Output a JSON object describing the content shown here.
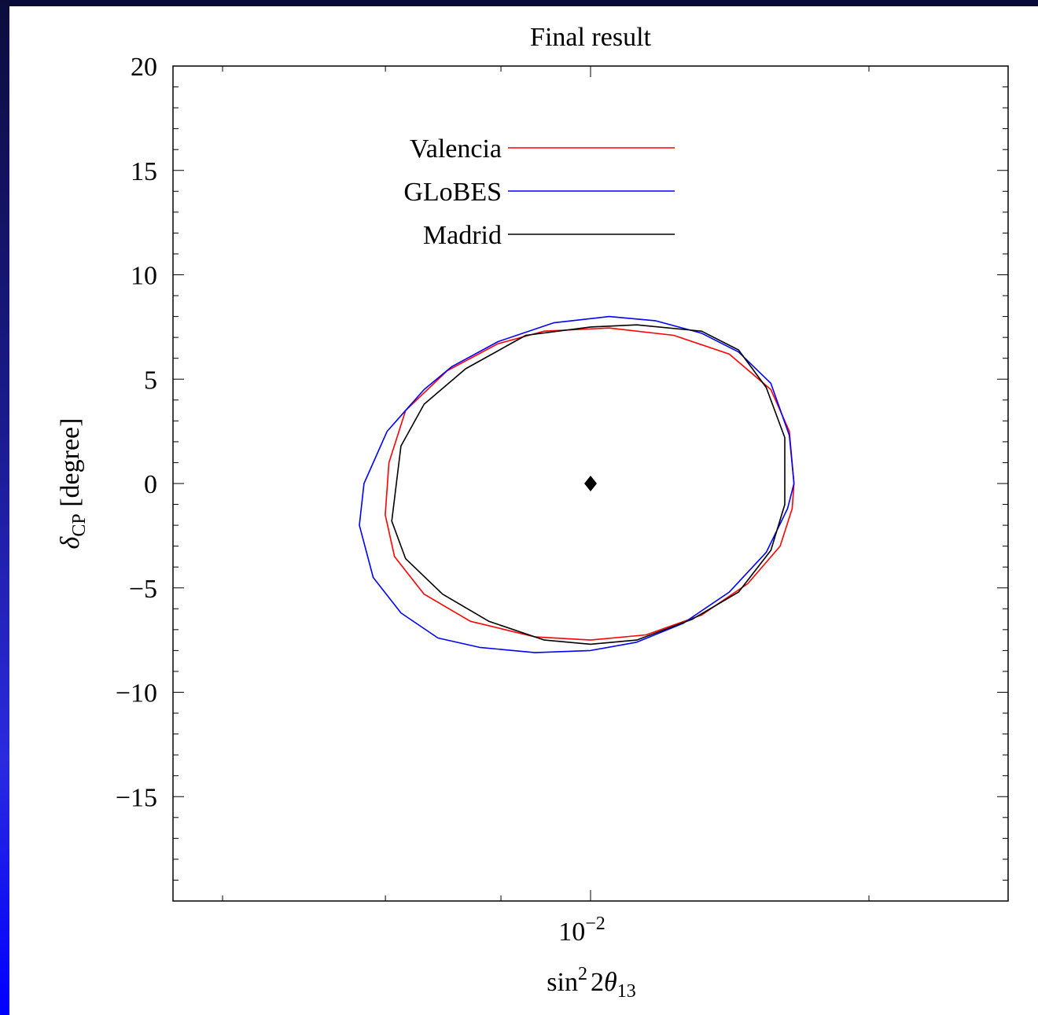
{
  "chart_data": {
    "type": "line",
    "title": "Final result",
    "xlabel": {
      "prefix": "sin",
      "sup": "2",
      "middle": "2",
      "theta": "θ",
      "sub": "13"
    },
    "ylabel": {
      "delta": "δ",
      "sub": "CP",
      "suffix": " [degree]"
    },
    "x_tick_label": {
      "base": "10",
      "exp": "−2"
    },
    "x_center": 0.01,
    "x_scale": "log",
    "ylim": [
      -20,
      20
    ],
    "y_ticks": [
      {
        "value": 20,
        "label": "20"
      },
      {
        "value": 15,
        "label": "15"
      },
      {
        "value": 10,
        "label": "10"
      },
      {
        "value": 5,
        "label": "5"
      },
      {
        "value": 0,
        "label": "0"
      },
      {
        "value": -5,
        "label": "−5"
      },
      {
        "value": -10,
        "label": "−10"
      },
      {
        "value": -15,
        "label": "−15"
      }
    ],
    "legend_position": "top-left",
    "best_fit_point": {
      "x_rel": 0.0,
      "y": 0
    },
    "series": [
      {
        "name": "Valencia",
        "color": "#ff0000",
        "points": [
          [
            0.22,
            0
          ],
          [
            0.215,
            2.5
          ],
          [
            0.195,
            4.5
          ],
          [
            0.15,
            6.2
          ],
          [
            0.09,
            7.1
          ],
          [
            0.02,
            7.45
          ],
          [
            -0.05,
            7.3
          ],
          [
            -0.1,
            6.7
          ],
          [
            -0.155,
            5.4
          ],
          [
            -0.2,
            3.5
          ],
          [
            -0.218,
            1.0
          ],
          [
            -0.222,
            -1.5
          ],
          [
            -0.212,
            -3.5
          ],
          [
            -0.18,
            -5.3
          ],
          [
            -0.13,
            -6.6
          ],
          [
            -0.06,
            -7.35
          ],
          [
            0.0,
            -7.5
          ],
          [
            0.06,
            -7.25
          ],
          [
            0.12,
            -6.3
          ],
          [
            0.17,
            -4.8
          ],
          [
            0.205,
            -3.0
          ],
          [
            0.218,
            -1.2
          ],
          [
            0.22,
            0
          ]
        ]
      },
      {
        "name": "GLoBES",
        "color": "#0000ff",
        "points": [
          [
            0.22,
            0
          ],
          [
            0.215,
            2.3
          ],
          [
            0.195,
            4.8
          ],
          [
            0.16,
            6.3
          ],
          [
            0.12,
            7.2
          ],
          [
            0.07,
            7.8
          ],
          [
            0.02,
            8.0
          ],
          [
            -0.04,
            7.7
          ],
          [
            -0.1,
            6.8
          ],
          [
            -0.15,
            5.6
          ],
          [
            -0.18,
            4.5
          ],
          [
            -0.22,
            2.5
          ],
          [
            -0.245,
            0
          ],
          [
            -0.25,
            -2.0
          ],
          [
            -0.235,
            -4.5
          ],
          [
            -0.205,
            -6.2
          ],
          [
            -0.165,
            -7.4
          ],
          [
            -0.12,
            -7.85
          ],
          [
            -0.06,
            -8.1
          ],
          [
            0.0,
            -8.0
          ],
          [
            0.05,
            -7.6
          ],
          [
            0.1,
            -6.7
          ],
          [
            0.15,
            -5.2
          ],
          [
            0.19,
            -3.3
          ],
          [
            0.213,
            -1.2
          ],
          [
            0.22,
            0
          ]
        ]
      },
      {
        "name": "Madrid",
        "color": "#000000",
        "points": [
          [
            0.21,
            0
          ],
          [
            0.21,
            2.2
          ],
          [
            0.19,
            4.6
          ],
          [
            0.16,
            6.4
          ],
          [
            0.12,
            7.3
          ],
          [
            0.05,
            7.6
          ],
          [
            0.0,
            7.5
          ],
          [
            -0.07,
            7.1
          ],
          [
            -0.135,
            5.5
          ],
          [
            -0.18,
            3.8
          ],
          [
            -0.205,
            1.8
          ],
          [
            -0.215,
            -1.8
          ],
          [
            -0.2,
            -3.6
          ],
          [
            -0.16,
            -5.3
          ],
          [
            -0.11,
            -6.6
          ],
          [
            -0.05,
            -7.5
          ],
          [
            0.0,
            -7.7
          ],
          [
            0.05,
            -7.5
          ],
          [
            0.11,
            -6.5
          ],
          [
            0.16,
            -5.2
          ],
          [
            0.195,
            -3.2
          ],
          [
            0.21,
            -1.0
          ],
          [
            0.21,
            0
          ]
        ]
      }
    ]
  }
}
